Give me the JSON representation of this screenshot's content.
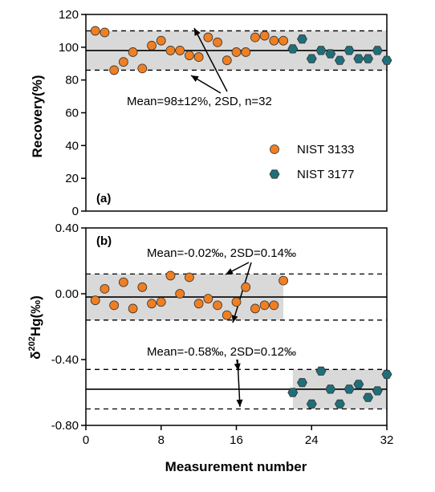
{
  "chart_data": [
    {
      "type": "scatter",
      "panel_label": "(a)",
      "xlabel": "",
      "ylabel": "Recovery(%)",
      "xlim": [
        0,
        32
      ],
      "ylim": [
        0,
        120
      ],
      "yticks": [
        0,
        20,
        40,
        60,
        80,
        100,
        120
      ],
      "ytick_labels": [
        "0",
        "20",
        "40",
        "60",
        "80",
        "100",
        "120"
      ],
      "mean_line": 98,
      "band": {
        "x": [
          0,
          32
        ],
        "y": [
          86,
          110
        ]
      },
      "dashed_lines": [
        110,
        86
      ],
      "annotation": "Mean=98±12%, 2SD, n=32",
      "legend_position": "lower-right",
      "series": [
        {
          "name": "NIST 3133",
          "marker": "circle",
          "color": "#F07F22",
          "points": [
            [
              1,
              110
            ],
            [
              2,
              109
            ],
            [
              3,
              86
            ],
            [
              4,
              91
            ],
            [
              5,
              97
            ],
            [
              6,
              87
            ],
            [
              7,
              101
            ],
            [
              8,
              104
            ],
            [
              9,
              98
            ],
            [
              10,
              98
            ],
            [
              11,
              95
            ],
            [
              12,
              94
            ],
            [
              13,
              106
            ],
            [
              14,
              103
            ],
            [
              15,
              92
            ],
            [
              16,
              97
            ],
            [
              17,
              97
            ],
            [
              18,
              106
            ],
            [
              19,
              107
            ],
            [
              20,
              104
            ],
            [
              21,
              104
            ]
          ]
        },
        {
          "name": "NIST 3177",
          "marker": "hexagon",
          "color": "#1F6F7A",
          "points": [
            [
              22,
              99
            ],
            [
              23,
              105
            ],
            [
              24,
              93
            ],
            [
              25,
              98
            ],
            [
              26,
              96
            ],
            [
              27,
              92
            ],
            [
              28,
              98
            ],
            [
              29,
              93
            ],
            [
              30,
              93
            ],
            [
              31,
              98
            ],
            [
              32,
              92
            ]
          ]
        }
      ]
    },
    {
      "type": "scatter",
      "panel_label": "(b)",
      "xlabel": "Measurement number",
      "ylabel_main": "δ",
      "ylabel_sup": "202",
      "ylabel_rest": "Hg(‰)",
      "xlim": [
        0,
        32
      ],
      "ylim": [
        -0.8,
        0.4
      ],
      "xticks": [
        0,
        8,
        16,
        24,
        32
      ],
      "xtick_labels": [
        "0",
        "8",
        "16",
        "24",
        "32"
      ],
      "yticks": [
        -0.8,
        -0.4,
        0.0,
        0.4
      ],
      "ytick_labels": [
        "-0.80",
        "-0.40",
        "0.00",
        "0.40"
      ],
      "groups": [
        {
          "mean": -0.02,
          "dashed_upper": 0.12,
          "dashed_lower": -0.16,
          "band": {
            "x": [
              0,
              21
            ],
            "y": [
              -0.16,
              0.12
            ]
          },
          "annotation": "Mean=-0.02‰, 2SD=0.14‰"
        },
        {
          "mean": -0.58,
          "dashed_upper": -0.46,
          "dashed_lower": -0.7,
          "band": {
            "x": [
              22,
              32
            ],
            "y": [
              -0.7,
              -0.46
            ]
          },
          "annotation": "Mean=-0.58‰, 2SD=0.12‰"
        }
      ],
      "series": [
        {
          "name": "NIST 3133",
          "marker": "circle",
          "color": "#F07F22",
          "points": [
            [
              1,
              -0.04
            ],
            [
              2,
              0.03
            ],
            [
              3,
              -0.07
            ],
            [
              4,
              0.07
            ],
            [
              5,
              -0.09
            ],
            [
              6,
              0.04
            ],
            [
              7,
              -0.06
            ],
            [
              8,
              -0.05
            ],
            [
              9,
              0.11
            ],
            [
              10,
              0.0
            ],
            [
              11,
              0.1
            ],
            [
              12,
              -0.06
            ],
            [
              13,
              -0.03
            ],
            [
              14,
              -0.07
            ],
            [
              15,
              -0.13
            ],
            [
              16,
              -0.05
            ],
            [
              17,
              0.04
            ],
            [
              18,
              -0.09
            ],
            [
              19,
              -0.07
            ],
            [
              20,
              -0.07
            ],
            [
              21,
              0.08
            ]
          ]
        },
        {
          "name": "NIST 3177",
          "marker": "hexagon",
          "color": "#1F6F7A",
          "points": [
            [
              22,
              -0.6
            ],
            [
              23,
              -0.54
            ],
            [
              24,
              -0.67
            ],
            [
              25,
              -0.47
            ],
            [
              26,
              -0.58
            ],
            [
              27,
              -0.67
            ],
            [
              28,
              -0.58
            ],
            [
              29,
              -0.55
            ],
            [
              30,
              -0.63
            ],
            [
              31,
              -0.59
            ],
            [
              32,
              -0.49
            ]
          ]
        }
      ]
    }
  ]
}
